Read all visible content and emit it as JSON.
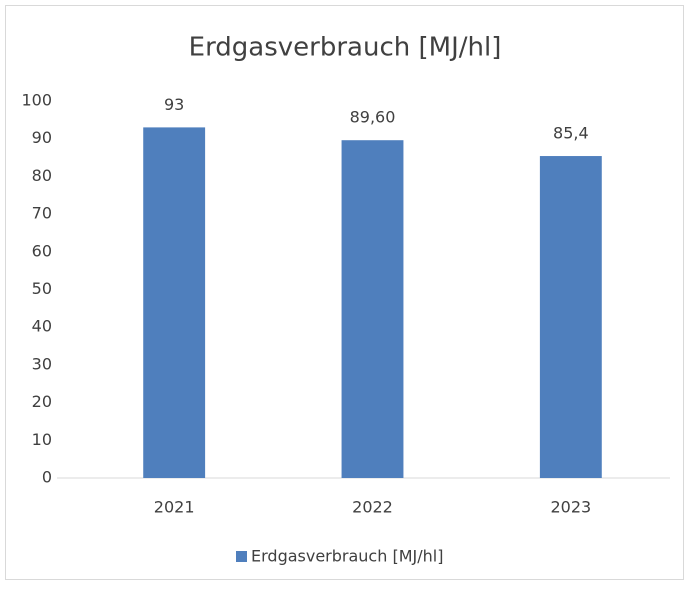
{
  "chart_data": {
    "type": "bar",
    "title": "Erdgasverbrauch [MJ/hl]",
    "categories": [
      "2021",
      "2022",
      "2023"
    ],
    "series": [
      {
        "name": "Erdgasverbrauch [MJ/hl]",
        "color": "#4f7fbd",
        "values": [
          93,
          89.6,
          85.4
        ],
        "value_labels": [
          "93",
          "89,60",
          "85,4"
        ]
      }
    ],
    "ylim": [
      0,
      100
    ],
    "yticks": [
      0,
      10,
      20,
      30,
      40,
      50,
      60,
      70,
      80,
      90,
      100
    ],
    "grid": false,
    "legend": "bottom"
  }
}
